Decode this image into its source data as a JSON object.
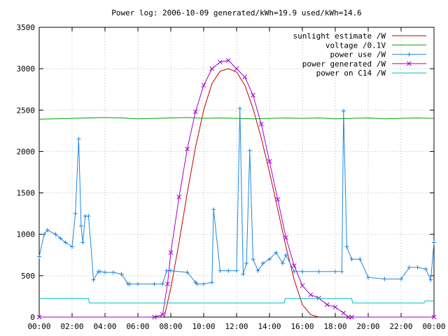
{
  "chart_data": {
    "type": "line",
    "title": "Power log: 2006-10-09 generated/kWh=19.9 used/kWh=14.6",
    "xlabel": "",
    "ylabel": "",
    "xlim": [
      0,
      24
    ],
    "ylim": [
      0,
      3500
    ],
    "x_ticks": [
      "00:00",
      "02:00",
      "04:00",
      "06:00",
      "08:00",
      "10:00",
      "12:00",
      "14:00",
      "16:00",
      "18:00",
      "20:00",
      "22:00",
      "00:00"
    ],
    "y_ticks": [
      0,
      500,
      1000,
      1500,
      2000,
      2500,
      3000,
      3500
    ],
    "grid": true,
    "legend_position": "top-right",
    "series": [
      {
        "name": "sunlight estimate /W",
        "color": "#c00000",
        "marker": "none",
        "x": [
          7.6,
          8.0,
          8.5,
          9.0,
          9.5,
          10.0,
          10.5,
          11.0,
          11.5,
          12.0,
          12.5,
          13.0,
          13.5,
          14.0,
          14.5,
          15.0,
          15.5,
          16.0,
          16.5,
          17.0
        ],
        "y": [
          0,
          350,
          900,
          1500,
          2050,
          2500,
          2820,
          2970,
          3000,
          2960,
          2800,
          2520,
          2160,
          1750,
          1300,
          850,
          450,
          150,
          30,
          0
        ]
      },
      {
        "name": "voltage /0.1V",
        "color": "#00a000",
        "marker": "none",
        "x": [
          0,
          1,
          2,
          3,
          4,
          5,
          6,
          7,
          8,
          9,
          10,
          11,
          12,
          13,
          14,
          15,
          16,
          17,
          18,
          19,
          20,
          21,
          22,
          23,
          24
        ],
        "y": [
          2390,
          2395,
          2400,
          2405,
          2410,
          2405,
          2395,
          2400,
          2405,
          2410,
          2400,
          2405,
          2400,
          2395,
          2400,
          2405,
          2400,
          2405,
          2395,
          2400,
          2405,
          2395,
          2400,
          2405,
          2400
        ]
      },
      {
        "name": "power use /W",
        "color": "#1e87e0",
        "marker": "plus",
        "x": [
          0,
          0.3,
          0.5,
          1.0,
          1.3,
          1.6,
          2.0,
          2.2,
          2.4,
          2.55,
          2.65,
          2.8,
          3.0,
          3.3,
          3.6,
          3.7,
          4.0,
          4.5,
          5.0,
          5.4,
          5.5,
          6.0,
          7.0,
          7.5,
          7.75,
          8.0,
          9.0,
          9.5,
          9.6,
          10.0,
          10.5,
          10.6,
          11.0,
          11.5,
          12.0,
          12.2,
          12.4,
          12.6,
          12.8,
          13.0,
          13.3,
          13.6,
          14.0,
          14.4,
          14.8,
          15.0,
          15.5,
          16.0,
          17.0,
          18.0,
          18.4,
          18.5,
          18.7,
          19.0,
          19.5,
          20.0,
          21.0,
          22.0,
          22.5,
          23.0,
          23.5,
          23.8,
          24.0
        ],
        "y": [
          730,
          1000,
          1050,
          1000,
          950,
          900,
          850,
          1250,
          2150,
          1100,
          900,
          1220,
          1220,
          450,
          550,
          550,
          540,
          540,
          520,
          400,
          400,
          400,
          400,
          400,
          560,
          560,
          540,
          420,
          400,
          400,
          420,
          1300,
          560,
          560,
          560,
          2520,
          520,
          650,
          2010,
          700,
          560,
          650,
          700,
          780,
          650,
          750,
          550,
          550,
          550,
          550,
          550,
          2490,
          850,
          700,
          700,
          480,
          460,
          460,
          600,
          600,
          580,
          450,
          900
        ]
      },
      {
        "name": "power generated /W",
        "color": "#a000d0",
        "marker": "x",
        "x": [
          0,
          7.0,
          7.5,
          7.8,
          8.0,
          8.5,
          9.0,
          9.5,
          10.0,
          10.5,
          11.0,
          11.5,
          12.0,
          12.5,
          13.0,
          13.5,
          14.0,
          14.5,
          15.0,
          15.5,
          16.0,
          16.5,
          17.0,
          17.5,
          18.0,
          18.5,
          18.8,
          19.0,
          24.0
        ],
        "y": [
          0,
          0,
          30,
          400,
          780,
          1450,
          2030,
          2480,
          2800,
          3000,
          3080,
          3100,
          3000,
          2900,
          2680,
          2330,
          1880,
          1420,
          960,
          620,
          380,
          270,
          230,
          150,
          120,
          50,
          0,
          0,
          0
        ]
      },
      {
        "name": "power on C14 /W",
        "color": "#00c0c0",
        "marker": "none",
        "x": [
          0,
          3.0,
          3.05,
          14.9,
          14.95,
          19.0,
          19.05,
          23.4,
          23.45,
          24.0
        ],
        "y": [
          225,
          225,
          170,
          170,
          225,
          225,
          170,
          170,
          195,
          195
        ]
      }
    ]
  }
}
